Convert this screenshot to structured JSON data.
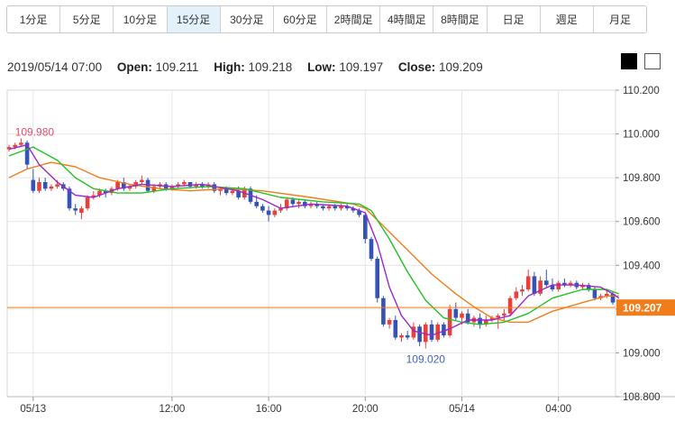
{
  "timeframes": [
    {
      "label": "1分足",
      "active": false
    },
    {
      "label": "5分足",
      "active": false
    },
    {
      "label": "10分足",
      "active": false
    },
    {
      "label": "15分足",
      "active": true
    },
    {
      "label": "30分足",
      "active": false
    },
    {
      "label": "60分足",
      "active": false
    },
    {
      "label": "2時間足",
      "active": false
    },
    {
      "label": "4時間足",
      "active": false
    },
    {
      "label": "8時間足",
      "active": false
    },
    {
      "label": "日足",
      "active": false
    },
    {
      "label": "週足",
      "active": false
    },
    {
      "label": "月足",
      "active": false
    }
  ],
  "ohlc": {
    "datetime": "2019/05/14 07:00",
    "open_label": "Open:",
    "open": "109.211",
    "high_label": "High:",
    "high": "109.218",
    "low_label": "Low:",
    "low": "109.197",
    "close_label": "Close:",
    "close": "109.209"
  },
  "colors": {
    "up": "#e8413c",
    "down": "#3553b5",
    "ma_short": "#9b27c9",
    "ma_mid": "#24c124",
    "ma_long": "#f07d1a",
    "price_line": "#f07d1a",
    "high_label": "#e0506a",
    "low_label": "#3f64bf",
    "grid": "#e6e6e6"
  },
  "chart_data": {
    "type": "candlestick",
    "ylim": [
      108.8,
      110.2
    ],
    "yticks": [
      "110.200",
      "110.000",
      "109.800",
      "109.600",
      "109.400",
      "109.200",
      "109.000",
      "108.800"
    ],
    "xticks": [
      {
        "label": "05/13",
        "index": 4
      },
      {
        "label": "12:00",
        "index": 27
      },
      {
        "label": "16:00",
        "index": 43
      },
      {
        "label": "20:00",
        "index": 59
      },
      {
        "label": "05/14",
        "index": 75
      },
      {
        "label": "04:00",
        "index": 91
      }
    ],
    "current_price": "109.207",
    "annotations": [
      {
        "text": "109.980",
        "value": 109.98,
        "index": 1
      },
      {
        "text": "109.020",
        "value": 109.02,
        "index": 69
      }
    ],
    "ohlc": [
      [
        109.93,
        109.95,
        109.92,
        109.94
      ],
      [
        109.94,
        109.96,
        109.93,
        109.95
      ],
      [
        109.95,
        109.98,
        109.94,
        109.96
      ],
      [
        109.96,
        109.97,
        109.84,
        109.86
      ],
      [
        109.79,
        109.84,
        109.73,
        109.74
      ],
      [
        109.74,
        109.8,
        109.73,
        109.78
      ],
      [
        109.78,
        109.8,
        109.74,
        109.75
      ],
      [
        109.75,
        109.77,
        109.74,
        109.76
      ],
      [
        109.76,
        109.79,
        109.75,
        109.77
      ],
      [
        109.77,
        109.78,
        109.74,
        109.75
      ],
      [
        109.75,
        109.76,
        109.65,
        109.66
      ],
      [
        109.66,
        109.68,
        109.63,
        109.65
      ],
      [
        109.64,
        109.67,
        109.61,
        109.66
      ],
      [
        109.66,
        109.72,
        109.65,
        109.71
      ],
      [
        109.71,
        109.74,
        109.7,
        109.72
      ],
      [
        109.72,
        109.75,
        109.71,
        109.74
      ],
      [
        109.74,
        109.75,
        109.71,
        109.73
      ],
      [
        109.73,
        109.76,
        109.72,
        109.75
      ],
      [
        109.75,
        109.79,
        109.74,
        109.78
      ],
      [
        109.78,
        109.8,
        109.74,
        109.75
      ],
      [
        109.75,
        109.77,
        109.74,
        109.76
      ],
      [
        109.76,
        109.79,
        109.75,
        109.78
      ],
      [
        109.78,
        109.81,
        109.77,
        109.79
      ],
      [
        109.79,
        109.8,
        109.73,
        109.74
      ],
      [
        109.74,
        109.77,
        109.73,
        109.76
      ],
      [
        109.76,
        109.78,
        109.75,
        109.77
      ],
      [
        109.77,
        109.78,
        109.74,
        109.75
      ],
      [
        109.75,
        109.77,
        109.74,
        109.76
      ],
      [
        109.76,
        109.78,
        109.75,
        109.77
      ],
      [
        109.77,
        109.79,
        109.76,
        109.78
      ],
      [
        109.78,
        109.78,
        109.75,
        109.76
      ],
      [
        109.76,
        109.78,
        109.75,
        109.77
      ],
      [
        109.77,
        109.78,
        109.75,
        109.76
      ],
      [
        109.76,
        109.78,
        109.75,
        109.77
      ],
      [
        109.77,
        109.78,
        109.73,
        109.74
      ],
      [
        109.74,
        109.76,
        109.72,
        109.75
      ],
      [
        109.75,
        109.76,
        109.72,
        109.73
      ],
      [
        109.73,
        109.75,
        109.72,
        109.74
      ],
      [
        109.74,
        109.76,
        109.7,
        109.71
      ],
      [
        109.71,
        109.76,
        109.7,
        109.75
      ],
      [
        109.75,
        109.76,
        109.68,
        109.69
      ],
      [
        109.69,
        109.72,
        109.66,
        109.67
      ],
      [
        109.67,
        109.68,
        109.64,
        109.65
      ],
      [
        109.65,
        109.67,
        109.6,
        109.63
      ],
      [
        109.63,
        109.66,
        109.62,
        109.65
      ],
      [
        109.65,
        109.68,
        109.64,
        109.66
      ],
      [
        109.66,
        109.71,
        109.65,
        109.7
      ],
      [
        109.7,
        109.71,
        109.67,
        109.68
      ],
      [
        109.68,
        109.7,
        109.66,
        109.69
      ],
      [
        109.69,
        109.7,
        109.66,
        109.67
      ],
      [
        109.67,
        109.69,
        109.66,
        109.68
      ],
      [
        109.68,
        109.69,
        109.66,
        109.67
      ],
      [
        109.67,
        109.68,
        109.65,
        109.66
      ],
      [
        109.66,
        109.68,
        109.65,
        109.67
      ],
      [
        109.67,
        109.68,
        109.65,
        109.66
      ],
      [
        109.66,
        109.68,
        109.65,
        109.67
      ],
      [
        109.67,
        109.68,
        109.65,
        109.66
      ],
      [
        109.66,
        109.67,
        109.64,
        109.65
      ],
      [
        109.65,
        109.66,
        109.62,
        109.63
      ],
      [
        109.63,
        109.64,
        109.5,
        109.52
      ],
      [
        109.52,
        109.53,
        109.42,
        109.43
      ],
      [
        109.43,
        109.44,
        109.23,
        109.25
      ],
      [
        109.25,
        109.26,
        109.12,
        109.13
      ],
      [
        109.13,
        109.16,
        109.11,
        109.15
      ],
      [
        109.15,
        109.17,
        109.06,
        109.07
      ],
      [
        109.07,
        109.09,
        109.05,
        109.08
      ],
      [
        109.08,
        109.1,
        109.06,
        109.07
      ],
      [
        109.07,
        109.14,
        109.06,
        109.12
      ],
      [
        109.12,
        109.13,
        109.03,
        109.05
      ],
      [
        109.05,
        109.14,
        109.02,
        109.13
      ],
      [
        109.13,
        109.15,
        109.05,
        109.06
      ],
      [
        109.06,
        109.14,
        109.05,
        109.13
      ],
      [
        109.13,
        109.14,
        109.07,
        109.08
      ],
      [
        109.08,
        109.22,
        109.07,
        109.2
      ],
      [
        109.2,
        109.23,
        109.15,
        109.16
      ],
      [
        109.16,
        109.19,
        109.13,
        109.18
      ],
      [
        109.18,
        109.2,
        109.13,
        109.14
      ],
      [
        109.14,
        109.17,
        109.12,
        109.16
      ],
      [
        109.16,
        109.18,
        109.11,
        109.13
      ],
      [
        109.13,
        109.17,
        109.12,
        109.15
      ],
      [
        109.15,
        109.17,
        109.14,
        109.16
      ],
      [
        109.16,
        109.18,
        109.11,
        109.17
      ],
      [
        109.17,
        109.2,
        109.15,
        109.18
      ],
      [
        109.18,
        109.26,
        109.17,
        109.25
      ],
      [
        109.25,
        109.3,
        109.24,
        109.28
      ],
      [
        109.28,
        109.31,
        109.26,
        109.29
      ],
      [
        109.29,
        109.38,
        109.28,
        109.35
      ],
      [
        109.35,
        109.37,
        109.26,
        109.27
      ],
      [
        109.27,
        109.35,
        109.26,
        109.33
      ],
      [
        109.33,
        109.38,
        109.3,
        109.31
      ],
      [
        109.31,
        109.34,
        109.28,
        109.29
      ],
      [
        109.29,
        109.33,
        109.28,
        109.32
      ],
      [
        109.32,
        109.34,
        109.3,
        109.31
      ],
      [
        109.31,
        109.33,
        109.3,
        109.32
      ],
      [
        109.32,
        109.33,
        109.29,
        109.3
      ],
      [
        109.3,
        109.32,
        109.29,
        109.31
      ],
      [
        109.31,
        109.32,
        109.28,
        109.29
      ],
      [
        109.29,
        109.3,
        109.24,
        109.25
      ],
      [
        109.25,
        109.27,
        109.24,
        109.26
      ],
      [
        109.26,
        109.29,
        109.25,
        109.27
      ],
      [
        109.27,
        109.28,
        109.22,
        109.23
      ],
      [
        109.21,
        109.22,
        109.2,
        109.21
      ]
    ],
    "ma_short": [
      [
        0,
        109.93
      ],
      [
        3,
        109.95
      ],
      [
        5,
        109.86
      ],
      [
        8,
        109.78
      ],
      [
        11,
        109.72
      ],
      [
        14,
        109.71
      ],
      [
        18,
        109.75
      ],
      [
        22,
        109.77
      ],
      [
        27,
        109.76
      ],
      [
        32,
        109.77
      ],
      [
        38,
        109.74
      ],
      [
        42,
        109.7
      ],
      [
        45,
        109.66
      ],
      [
        50,
        109.68
      ],
      [
        56,
        109.67
      ],
      [
        59,
        109.64
      ],
      [
        61,
        109.5
      ],
      [
        63,
        109.3
      ],
      [
        65,
        109.17
      ],
      [
        67,
        109.1
      ],
      [
        70,
        109.08
      ],
      [
        73,
        109.11
      ],
      [
        76,
        109.15
      ],
      [
        80,
        109.15
      ],
      [
        83,
        109.17
      ],
      [
        86,
        109.26
      ],
      [
        90,
        109.31
      ],
      [
        94,
        109.31
      ],
      [
        98,
        109.3
      ],
      [
        100,
        109.27
      ],
      [
        101,
        109.25
      ]
    ],
    "ma_mid": [
      [
        0,
        109.9
      ],
      [
        4,
        109.94
      ],
      [
        8,
        109.88
      ],
      [
        11,
        109.8
      ],
      [
        14,
        109.75
      ],
      [
        18,
        109.73
      ],
      [
        22,
        109.73
      ],
      [
        27,
        109.75
      ],
      [
        33,
        109.76
      ],
      [
        39,
        109.75
      ],
      [
        45,
        109.71
      ],
      [
        52,
        109.69
      ],
      [
        58,
        109.68
      ],
      [
        60,
        109.65
      ],
      [
        63,
        109.52
      ],
      [
        66,
        109.37
      ],
      [
        69,
        109.24
      ],
      [
        72,
        109.16
      ],
      [
        75,
        109.14
      ],
      [
        78,
        109.13
      ],
      [
        82,
        109.14
      ],
      [
        86,
        109.18
      ],
      [
        90,
        109.25
      ],
      [
        95,
        109.29
      ],
      [
        99,
        109.29
      ],
      [
        101,
        109.27
      ]
    ],
    "ma_long": [
      [
        0,
        109.8
      ],
      [
        3,
        109.84
      ],
      [
        7,
        109.87
      ],
      [
        11,
        109.85
      ],
      [
        15,
        109.8
      ],
      [
        20,
        109.77
      ],
      [
        25,
        109.75
      ],
      [
        30,
        109.74
      ],
      [
        36,
        109.75
      ],
      [
        42,
        109.74
      ],
      [
        50,
        109.71
      ],
      [
        57,
        109.68
      ],
      [
        59,
        109.66
      ],
      [
        62,
        109.58
      ],
      [
        66,
        109.47
      ],
      [
        70,
        109.36
      ],
      [
        74,
        109.27
      ],
      [
        77,
        109.21
      ],
      [
        80,
        109.16
      ],
      [
        83,
        109.14
      ],
      [
        86,
        109.14
      ],
      [
        90,
        109.19
      ],
      [
        95,
        109.23
      ],
      [
        99,
        109.26
      ],
      [
        101,
        109.26
      ]
    ]
  }
}
